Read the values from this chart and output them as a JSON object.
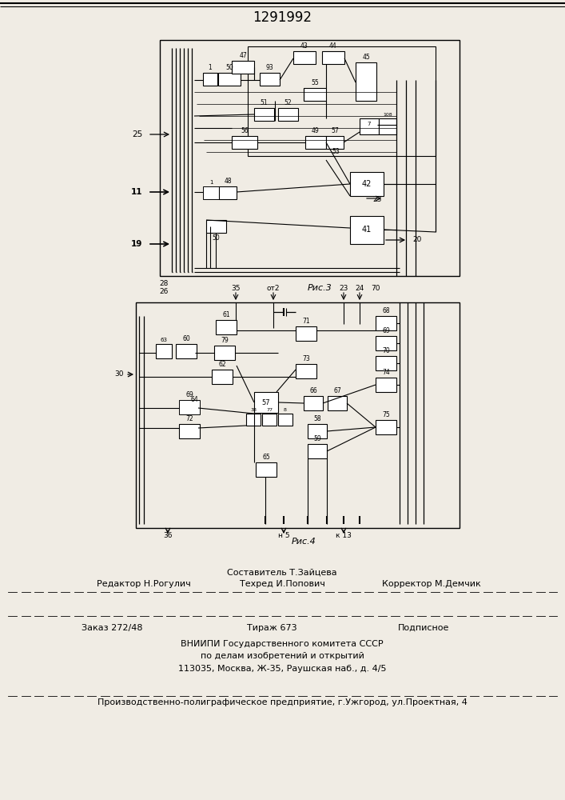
{
  "title": "1291992",
  "bg": "#f0ece4",
  "fig3_caption": "Рис.3",
  "fig4_caption": "Рис.4",
  "text_sestavitel": "Составитель Т.Зайцева",
  "text_redaktor": "Редактор Н.Рогулич",
  "text_tekhred": "Техред И.Попович",
  "text_korrektor": "Корректор М.Демчик",
  "text_zakaz": "Заказ 272/48",
  "text_tirazh": "Тираж 673",
  "text_podpisnoe": "Подписное",
  "text_vniiipi": "ВНИИПИ Государственного комитета СССР",
  "text_po_delam": "по делам изобретений и открытий",
  "text_address": "113035, Москва, Ж-35, Раушская наб., д. 4/5",
  "text_factory": "Производственно-полиграфическое предприятие, г.Ужгород, ул.Проектная, 4"
}
